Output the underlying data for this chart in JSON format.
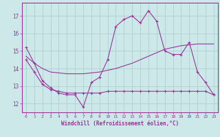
{
  "bg_color": "#cce8e8",
  "line_color": "#993399",
  "grid_color": "#aacccc",
  "xlabel": "Windchill (Refroidissement éolien,°C)",
  "xlabel_color": "#993399",
  "tick_color": "#993399",
  "spine_color": "#993399",
  "ylim": [
    11.5,
    17.75
  ],
  "xlim": [
    -0.5,
    23.5
  ],
  "yticks": [
    12,
    13,
    14,
    15,
    16,
    17
  ],
  "xticks": [
    0,
    1,
    2,
    3,
    4,
    5,
    6,
    7,
    8,
    9,
    10,
    11,
    12,
    13,
    14,
    15,
    16,
    17,
    18,
    19,
    20,
    21,
    22,
    23
  ],
  "line1_x": [
    0,
    1,
    2,
    3,
    4,
    5,
    6,
    7,
    8,
    9,
    10,
    11,
    12,
    13,
    14,
    15,
    16,
    17,
    18,
    19,
    20,
    21,
    22,
    23
  ],
  "line1_y": [
    15.2,
    14.3,
    13.3,
    12.9,
    12.6,
    12.5,
    12.5,
    11.8,
    13.2,
    13.5,
    14.5,
    16.4,
    16.8,
    17.0,
    16.6,
    17.3,
    16.7,
    15.0,
    14.8,
    14.8,
    15.5,
    13.8,
    13.2,
    12.5
  ],
  "line2_x": [
    0,
    1,
    2,
    3,
    5,
    7,
    9,
    11,
    13,
    15,
    17,
    19,
    21,
    23
  ],
  "line2_y": [
    14.7,
    14.3,
    14.0,
    13.8,
    13.7,
    13.7,
    13.8,
    14.0,
    14.3,
    14.7,
    15.1,
    15.3,
    15.4,
    15.4
  ],
  "line3_x": [
    0,
    1,
    2,
    3,
    4,
    5,
    6,
    7,
    8,
    9,
    10,
    11,
    12,
    13,
    14,
    15,
    16,
    17,
    18,
    19,
    20,
    21,
    22,
    23
  ],
  "line3_y": [
    14.5,
    13.8,
    13.1,
    12.8,
    12.7,
    12.6,
    12.6,
    12.6,
    12.6,
    12.6,
    12.7,
    12.7,
    12.7,
    12.7,
    12.7,
    12.7,
    12.7,
    12.7,
    12.7,
    12.7,
    12.7,
    12.7,
    12.7,
    12.5
  ]
}
